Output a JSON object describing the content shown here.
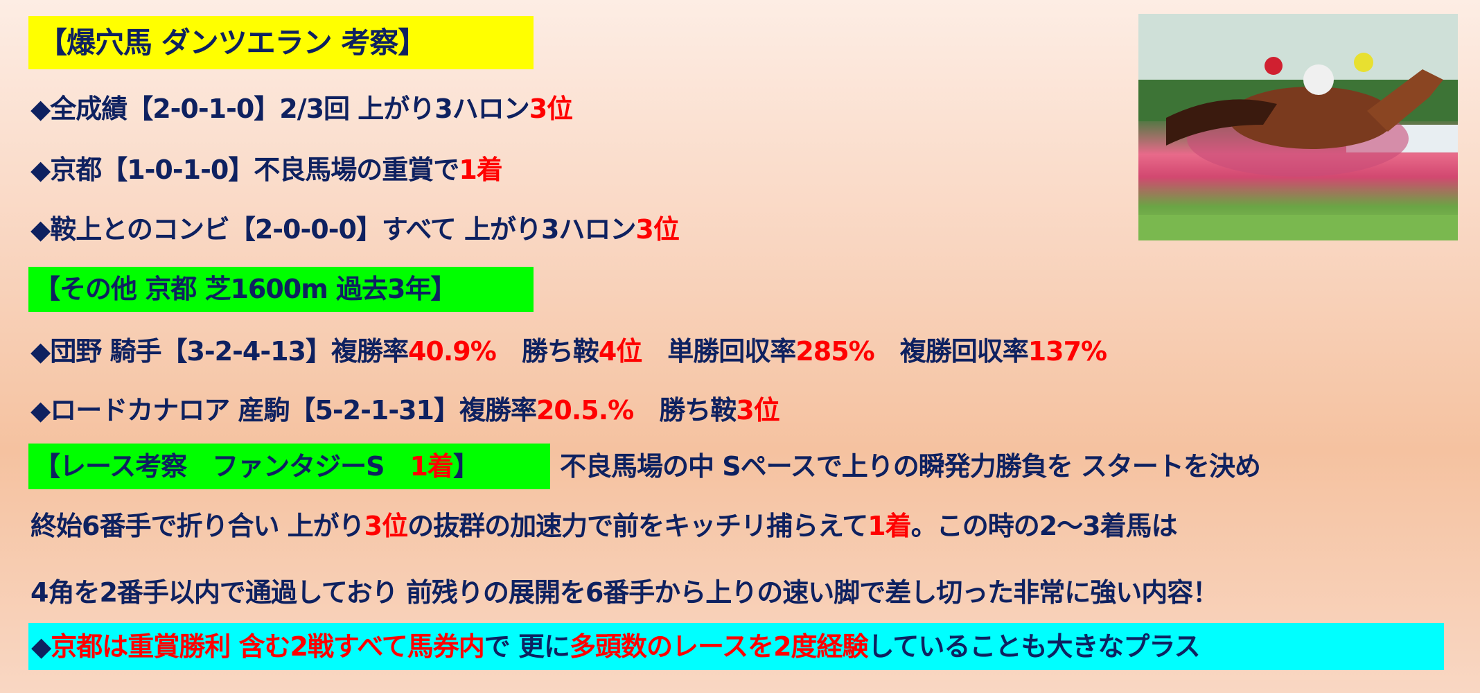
{
  "title": "【爆穴馬 ダンツエラン 考察】",
  "records": [
    {
      "segments": [
        {
          "text": "◆全成績【2-0-1-0】2/3回 上がり3ハロン",
          "red": false
        },
        {
          "text": "3位",
          "red": true
        }
      ]
    },
    {
      "segments": [
        {
          "text": "◆京都【1-0-1-0】不良馬場の重賞で",
          "red": false
        },
        {
          "text": "1着",
          "red": true
        }
      ]
    },
    {
      "segments": [
        {
          "text": "◆鞍上とのコンビ【2-0-0-0】すべて 上がり3ハロン",
          "red": false
        },
        {
          "text": "3位",
          "red": true
        }
      ]
    }
  ],
  "other_header": "【その他 京都 芝1600m 過去3年】",
  "other": [
    {
      "segments": [
        {
          "text": "◆団野 騎手【3-2-4-13】複勝率",
          "red": false
        },
        {
          "text": "40.9%",
          "red": true
        },
        {
          "text": "　勝ち鞍",
          "red": false
        },
        {
          "text": "4位",
          "red": true
        },
        {
          "text": "　単勝回収率",
          "red": false
        },
        {
          "text": "285%",
          "red": true
        },
        {
          "text": "　複勝回収率",
          "red": false
        },
        {
          "text": "137%",
          "red": true
        }
      ]
    },
    {
      "segments": [
        {
          "text": "◆ロードカナロア 産駒【5-2-1-31】複勝率",
          "red": false
        },
        {
          "text": "20.5.%",
          "red": true
        },
        {
          "text": "　勝ち鞍",
          "red": false
        },
        {
          "text": "3位",
          "red": true
        }
      ]
    }
  ],
  "race": {
    "header_pre": "【レース考察　ファンタジーS　",
    "header_red": "1着",
    "header_post": "】",
    "line1": "不良馬場の中 Sペースで上りの瞬発力勝負を スタートを決め",
    "line2": [
      {
        "text": "終始6番手で折り合い 上がり",
        "red": false
      },
      {
        "text": "3位",
        "red": true
      },
      {
        "text": "の抜群の加速力で前をキッチリ捕らえて",
        "red": false
      },
      {
        "text": "1着",
        "red": true
      },
      {
        "text": "。この時の2～3着馬は",
        "red": false
      }
    ],
    "line3": "4角を2番手以内で通過しており 前残りの展開を6番手から上りの速い脚で差し切った非常に強い内容！"
  },
  "summary": [
    {
      "text": "◆",
      "red": false
    },
    {
      "text": "京都は重賞勝利 含む2戦すべて馬券内",
      "red": true
    },
    {
      "text": "で 更に",
      "red": false
    },
    {
      "text": "多頭数のレースを2度経験",
      "red": true
    },
    {
      "text": "していることも大きなプラス",
      "red": false
    }
  ],
  "photo_alt": "horse-racing-photo"
}
